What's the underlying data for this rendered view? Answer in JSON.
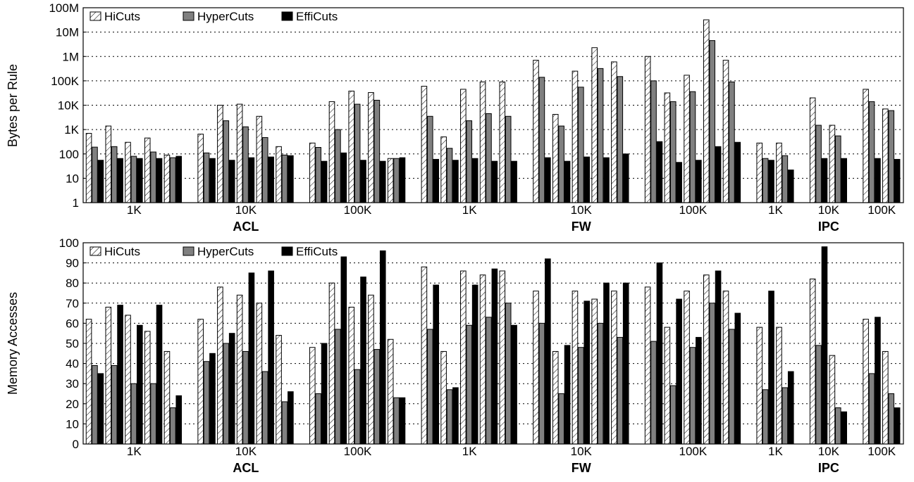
{
  "chart_data": [
    {
      "type": "bar",
      "ylabel": "Bytes per Rule",
      "yscale": "log",
      "ylim": [
        1,
        100000000
      ],
      "ytick_labels": [
        "1",
        "10",
        "100",
        "1K",
        "10K",
        "100K",
        "1M",
        "10M",
        "100M"
      ],
      "grid": "horizontal dotted",
      "legend_position": "top-left",
      "groups": [
        "ACL",
        "FW",
        "IPC"
      ],
      "subgroups": [
        {
          "group": "ACL",
          "label": "1K"
        },
        {
          "group": "ACL",
          "label": "10K"
        },
        {
          "group": "ACL",
          "label": "100K"
        },
        {
          "group": "FW",
          "label": "1K"
        },
        {
          "group": "FW",
          "label": "10K"
        },
        {
          "group": "FW",
          "label": "100K"
        },
        {
          "group": "IPC",
          "label": "1K"
        },
        {
          "group": "IPC",
          "label": "10K"
        },
        {
          "group": "IPC",
          "label": "100K"
        }
      ],
      "clusters_per_subgroup": [
        5,
        5,
        5,
        5,
        5,
        5,
        2,
        2,
        2
      ],
      "series": [
        {
          "name": "HiCuts",
          "values": [
            700,
            1400,
            300,
            450,
            90,
            650,
            10000,
            11000,
            3500,
            200,
            280,
            14000,
            38000,
            33000,
            65,
            60000,
            500,
            45000,
            90000,
            90000,
            700000,
            4200,
            250000,
            2300000,
            600000,
            1000000,
            32000,
            170000,
            32000000,
            700000,
            280,
            280,
            20000,
            1500,
            45000,
            7000
          ]
        },
        {
          "name": "HyperCuts",
          "values": [
            190,
            200,
            80,
            120,
            70,
            110,
            2300,
            1300,
            470,
            90,
            185,
            1000,
            11000,
            16000,
            65,
            3500,
            170,
            2300,
            4500,
            3500,
            140000,
            1400,
            55000,
            320000,
            150000,
            100000,
            14000,
            36000,
            4500000,
            90000,
            65,
            85,
            1500,
            550,
            14000,
            6000
          ]
        },
        {
          "name": "EffiCuts",
          "values": [
            55,
            65,
            65,
            65,
            80,
            65,
            55,
            70,
            75,
            85,
            50,
            110,
            55,
            50,
            70,
            60,
            55,
            65,
            50,
            50,
            70,
            50,
            75,
            70,
            100,
            320,
            45,
            55,
            200,
            300,
            55,
            22,
            65,
            65,
            65,
            60
          ]
        }
      ],
      "colors": {
        "HiCuts": "#ffffff",
        "HyperCuts": "#808080",
        "EffiCuts": "#000000"
      }
    },
    {
      "type": "bar",
      "ylabel": "Memory Accesses",
      "ylim": [
        0,
        100
      ],
      "ytick_labels": [
        "0",
        "10",
        "20",
        "30",
        "40",
        "50",
        "60",
        "70",
        "80",
        "90",
        "100"
      ],
      "grid": "horizontal dotted",
      "legend_position": "top-left",
      "groups": [
        "ACL",
        "FW",
        "IPC"
      ],
      "subgroups": [
        {
          "group": "ACL",
          "label": "1K"
        },
        {
          "group": "ACL",
          "label": "10K"
        },
        {
          "group": "ACL",
          "label": "100K"
        },
        {
          "group": "FW",
          "label": "1K"
        },
        {
          "group": "FW",
          "label": "10K"
        },
        {
          "group": "FW",
          "label": "100K"
        },
        {
          "group": "IPC",
          "label": "1K"
        },
        {
          "group": "IPC",
          "label": "10K"
        },
        {
          "group": "IPC",
          "label": "100K"
        }
      ],
      "clusters_per_subgroup": [
        5,
        5,
        5,
        5,
        5,
        5,
        2,
        2,
        2
      ],
      "series": [
        {
          "name": "HiCuts",
          "values": [
            62,
            68,
            64,
            56,
            46,
            62,
            78,
            74,
            70,
            54,
            48,
            80,
            68,
            74,
            52,
            88,
            46,
            86,
            84,
            86,
            76,
            46,
            76,
            72,
            76,
            78,
            58,
            76,
            84,
            76,
            58,
            58,
            82,
            44,
            62,
            46
          ]
        },
        {
          "name": "HyperCuts",
          "values": [
            39,
            39,
            30,
            30,
            18,
            41,
            50,
            46,
            36,
            21,
            25,
            57,
            37,
            47,
            23,
            57,
            27,
            59,
            63,
            70,
            60,
            25,
            48,
            60,
            53,
            51,
            29,
            48,
            70,
            57,
            27,
            28,
            49,
            18,
            35,
            25
          ]
        },
        {
          "name": "EffiCuts",
          "values": [
            35,
            69,
            59,
            69,
            24,
            45,
            55,
            85,
            86,
            26,
            50,
            93,
            83,
            96,
            23,
            79,
            28,
            79,
            87,
            59,
            92,
            49,
            71,
            80,
            80,
            90,
            72,
            53,
            86,
            65,
            76,
            36,
            98,
            16,
            63,
            18
          ]
        }
      ],
      "colors": {
        "HiCuts": "#ffffff",
        "HyperCuts": "#808080",
        "EffiCuts": "#000000"
      }
    }
  ]
}
